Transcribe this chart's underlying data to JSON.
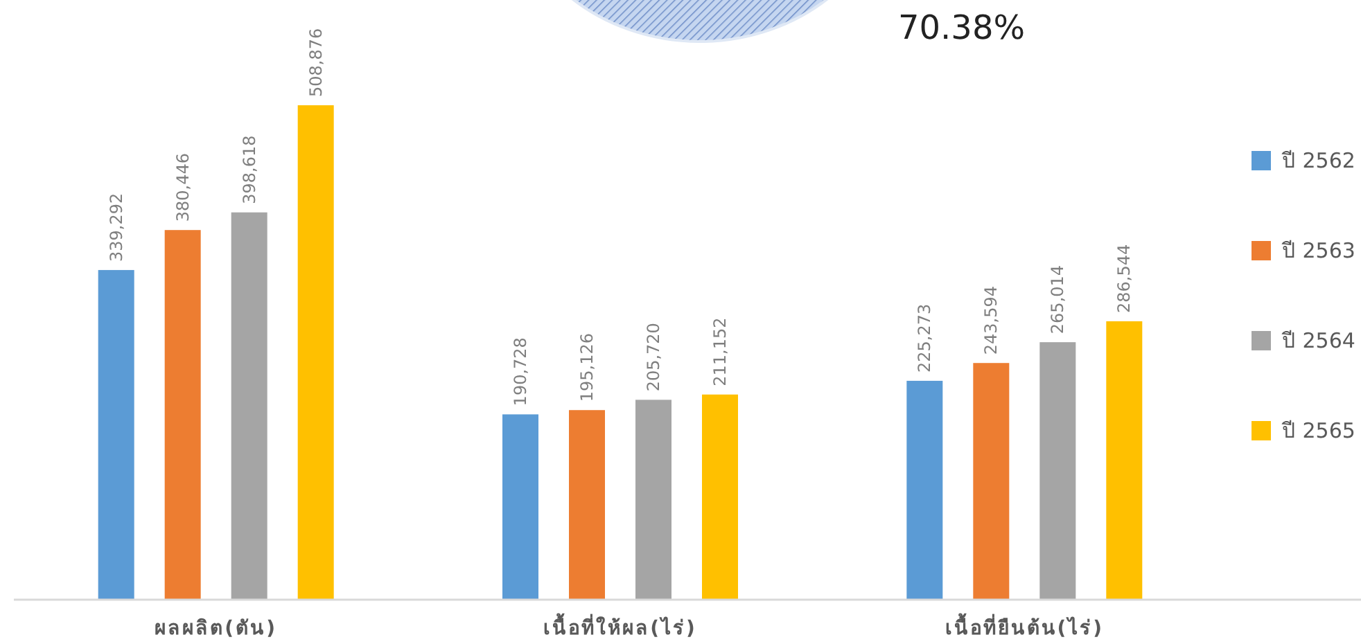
{
  "chart_data": {
    "type": "bar",
    "categories": [
      "ผลผลิต(ตัน)",
      "เนื้อที่ให้ผล(ไร่)",
      "เนื้อที่ยืนต้น(ไร่)"
    ],
    "series": [
      {
        "name": "ปี 2562",
        "color": "#5b9bd5",
        "values": [
          339292,
          190728,
          225273
        ],
        "value_labels": [
          "339,292",
          "190,728",
          "225,273"
        ]
      },
      {
        "name": "ปี 2563",
        "color": "#ed7d31",
        "values": [
          380446,
          195126,
          243594
        ],
        "value_labels": [
          "380,446",
          "195,126",
          "243,594"
        ]
      },
      {
        "name": "ปี 2564",
        "color": "#a5a5a5",
        "values": [
          398618,
          205720,
          265014
        ],
        "value_labels": [
          "398,618",
          "205,720",
          "265,014"
        ]
      },
      {
        "name": "ปี 2565",
        "color": "#ffc000",
        "values": [
          508876,
          211152,
          286544
        ],
        "value_labels": [
          "508,876",
          "211,152",
          "286,544"
        ]
      }
    ],
    "legend": "right",
    "grid": false,
    "annotations": [
      "70.38%"
    ]
  }
}
